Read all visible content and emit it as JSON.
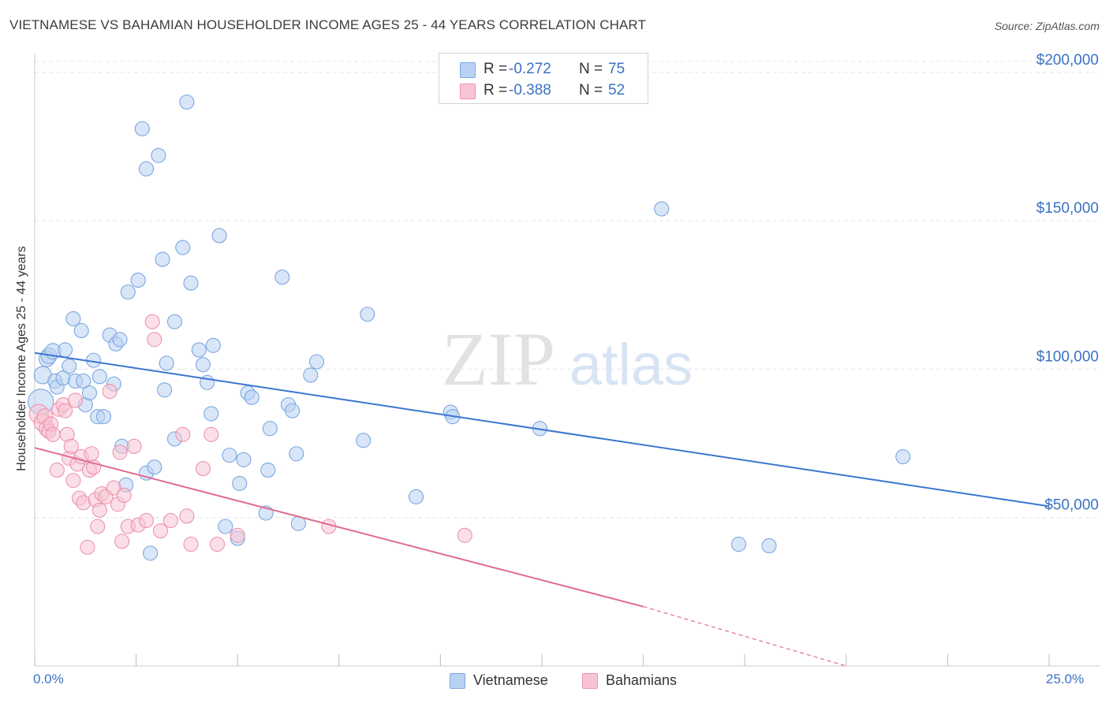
{
  "header": {
    "title": "VIETNAMESE VS BAHAMIAN HOUSEHOLDER INCOME AGES 25 - 44 YEARS CORRELATION CHART",
    "source": "Source: ZipAtlas.com"
  },
  "watermark": {
    "zip": "ZIP",
    "atlas": "atlas"
  },
  "legend": {
    "rows": [
      {
        "r_label": "R =",
        "r_value": "-0.272",
        "n_label": "N =",
        "n_value": "75"
      },
      {
        "r_label": "R =",
        "r_value": "-0.388",
        "n_label": "N =",
        "n_value": "52"
      }
    ]
  },
  "bottom_legend": {
    "vietnamese": "Vietnamese",
    "bahamians": "Bahamians"
  },
  "axes": {
    "ylabel": "Householder Income Ages 25 - 44 years",
    "x_min_label": "0.0%",
    "x_max_label": "25.0%"
  },
  "colors": {
    "vietnamese_fill": "#b9d2f3",
    "vietnamese_stroke": "#7ba7e0",
    "vietnamese_line": "#3a76d1",
    "bahamians_fill": "#f8c4d3",
    "bahamians_stroke": "#ec93ae",
    "bahamians_line": "#e06b93",
    "tick_label": "#3a72c4",
    "grid": "#e3e3e3",
    "axis": "#cccccc"
  },
  "chart_data": {
    "type": "scatter",
    "title": "VIETNAMESE VS BAHAMIAN HOUSEHOLDER INCOME AGES 25 - 44 YEARS CORRELATION CHART",
    "xlabel": "",
    "ylabel": "Householder Income Ages 25 - 44 years",
    "xlim": [
      0,
      25
    ],
    "ylim": [
      0,
      205000
    ],
    "y_ticks": [
      {
        "value": 50000,
        "label": "$50,000"
      },
      {
        "value": 100000,
        "label": "$100,000"
      },
      {
        "value": 150000,
        "label": "$150,000"
      },
      {
        "value": 200000,
        "label": "$200,000"
      }
    ],
    "x_ticks": [
      0,
      2.5,
      5,
      7.5,
      10,
      12.5,
      15,
      17.5,
      20,
      22.5,
      25
    ],
    "grid": true,
    "legend_position": "top-center",
    "series": [
      {
        "name": "Vietnamese",
        "r": -0.272,
        "n": 75,
        "trend": {
          "x": [
            0,
            25
          ],
          "y": [
            105500,
            53800
          ]
        },
        "points": [
          [
            0.15,
            89000,
            16
          ],
          [
            0.2,
            98000,
            11
          ],
          [
            0.3,
            103500,
            10
          ],
          [
            0.35,
            104500,
            10
          ],
          [
            0.45,
            106000,
            10
          ],
          [
            0.5,
            96000,
            9
          ],
          [
            0.55,
            94000,
            9
          ],
          [
            0.7,
            97000,
            9
          ],
          [
            0.75,
            106500,
            9
          ],
          [
            0.85,
            101000,
            9
          ],
          [
            0.95,
            117000,
            9
          ],
          [
            1.0,
            96000,
            9
          ],
          [
            1.15,
            113000,
            9
          ],
          [
            1.2,
            96000,
            9
          ],
          [
            1.25,
            88000,
            9
          ],
          [
            1.35,
            92000,
            9
          ],
          [
            1.45,
            103000,
            9
          ],
          [
            1.55,
            84000,
            9
          ],
          [
            1.6,
            97500,
            9
          ],
          [
            1.7,
            84000,
            9
          ],
          [
            1.85,
            111500,
            9
          ],
          [
            1.95,
            95000,
            9
          ],
          [
            2.0,
            108500,
            9
          ],
          [
            2.1,
            110000,
            9
          ],
          [
            2.15,
            74000,
            9
          ],
          [
            2.25,
            61000,
            9
          ],
          [
            2.3,
            126000,
            9
          ],
          [
            2.55,
            130000,
            9
          ],
          [
            2.65,
            181000,
            9
          ],
          [
            2.75,
            65000,
            9
          ],
          [
            2.75,
            167500,
            9
          ],
          [
            2.85,
            38000,
            9
          ],
          [
            2.95,
            67000,
            9
          ],
          [
            3.05,
            172000,
            9
          ],
          [
            3.15,
            137000,
            9
          ],
          [
            3.2,
            93000,
            9
          ],
          [
            3.25,
            102000,
            9
          ],
          [
            3.45,
            116000,
            9
          ],
          [
            3.45,
            76500,
            9
          ],
          [
            3.65,
            141000,
            9
          ],
          [
            3.75,
            190000,
            9
          ],
          [
            3.85,
            129000,
            9
          ],
          [
            4.05,
            106500,
            9
          ],
          [
            4.15,
            101500,
            9
          ],
          [
            4.25,
            95500,
            9
          ],
          [
            4.35,
            85000,
            9
          ],
          [
            4.4,
            108000,
            9
          ],
          [
            4.55,
            145000,
            9
          ],
          [
            4.7,
            47000,
            9
          ],
          [
            4.8,
            71000,
            9
          ],
          [
            5.0,
            43000,
            9
          ],
          [
            5.05,
            61500,
            9
          ],
          [
            5.15,
            69500,
            9
          ],
          [
            5.25,
            92000,
            9
          ],
          [
            5.35,
            90500,
            9
          ],
          [
            5.7,
            51500,
            9
          ],
          [
            5.75,
            66000,
            9
          ],
          [
            5.8,
            80000,
            9
          ],
          [
            6.1,
            131000,
            9
          ],
          [
            6.25,
            88000,
            9
          ],
          [
            6.35,
            86000,
            9
          ],
          [
            6.45,
            71500,
            9
          ],
          [
            6.5,
            48000,
            9
          ],
          [
            6.8,
            98000,
            9
          ],
          [
            6.95,
            102500,
            9
          ],
          [
            8.1,
            76000,
            9
          ],
          [
            8.2,
            118500,
            9
          ],
          [
            9.4,
            57000,
            9
          ],
          [
            10.25,
            85500,
            9
          ],
          [
            10.3,
            84000,
            9
          ],
          [
            12.45,
            80000,
            9
          ],
          [
            15.45,
            154000,
            9
          ],
          [
            17.35,
            41000,
            9
          ],
          [
            18.1,
            40500,
            9
          ],
          [
            21.4,
            70500,
            9
          ]
        ]
      },
      {
        "name": "Bahamians",
        "r": -0.388,
        "n": 52,
        "trend": {
          "x": [
            0,
            15
          ],
          "y": [
            73500,
            20000
          ]
        },
        "trend_dashed": {
          "x": [
            15,
            20
          ],
          "y": [
            20000,
            0
          ]
        },
        "points": [
          [
            0.1,
            85000,
            12
          ],
          [
            0.2,
            82000,
            11
          ],
          [
            0.25,
            84000,
            10
          ],
          [
            0.3,
            80000,
            10
          ],
          [
            0.35,
            79000,
            9
          ],
          [
            0.4,
            81500,
            9
          ],
          [
            0.45,
            78000,
            9
          ],
          [
            0.55,
            66000,
            9
          ],
          [
            0.6,
            86500,
            9
          ],
          [
            0.7,
            88000,
            9
          ],
          [
            0.75,
            86000,
            9
          ],
          [
            0.8,
            78000,
            9
          ],
          [
            0.85,
            70000,
            9
          ],
          [
            0.9,
            74000,
            9
          ],
          [
            0.95,
            62500,
            9
          ],
          [
            1.0,
            89500,
            9
          ],
          [
            1.05,
            68000,
            9
          ],
          [
            1.1,
            56500,
            9
          ],
          [
            1.15,
            70500,
            9
          ],
          [
            1.2,
            55000,
            9
          ],
          [
            1.3,
            40000,
            9
          ],
          [
            1.35,
            66000,
            9
          ],
          [
            1.4,
            71500,
            9
          ],
          [
            1.45,
            67000,
            9
          ],
          [
            1.5,
            56000,
            9
          ],
          [
            1.55,
            47000,
            9
          ],
          [
            1.6,
            52500,
            9
          ],
          [
            1.65,
            58000,
            9
          ],
          [
            1.75,
            57000,
            9
          ],
          [
            1.85,
            92500,
            9
          ],
          [
            1.95,
            60000,
            9
          ],
          [
            2.05,
            54500,
            9
          ],
          [
            2.1,
            72000,
            9
          ],
          [
            2.15,
            42000,
            9
          ],
          [
            2.2,
            57500,
            9
          ],
          [
            2.3,
            47000,
            9
          ],
          [
            2.45,
            74000,
            9
          ],
          [
            2.55,
            47500,
            9
          ],
          [
            2.75,
            49000,
            9
          ],
          [
            2.9,
            116000,
            9
          ],
          [
            2.95,
            110000,
            9
          ],
          [
            3.1,
            45500,
            9
          ],
          [
            3.35,
            49000,
            9
          ],
          [
            3.65,
            78000,
            9
          ],
          [
            3.75,
            50500,
            9
          ],
          [
            3.85,
            41000,
            9
          ],
          [
            4.15,
            66500,
            9
          ],
          [
            4.35,
            78000,
            9
          ],
          [
            4.5,
            41000,
            9
          ],
          [
            5.0,
            44000,
            9
          ],
          [
            7.25,
            47000,
            9
          ],
          [
            10.6,
            44000,
            9
          ]
        ]
      }
    ]
  }
}
